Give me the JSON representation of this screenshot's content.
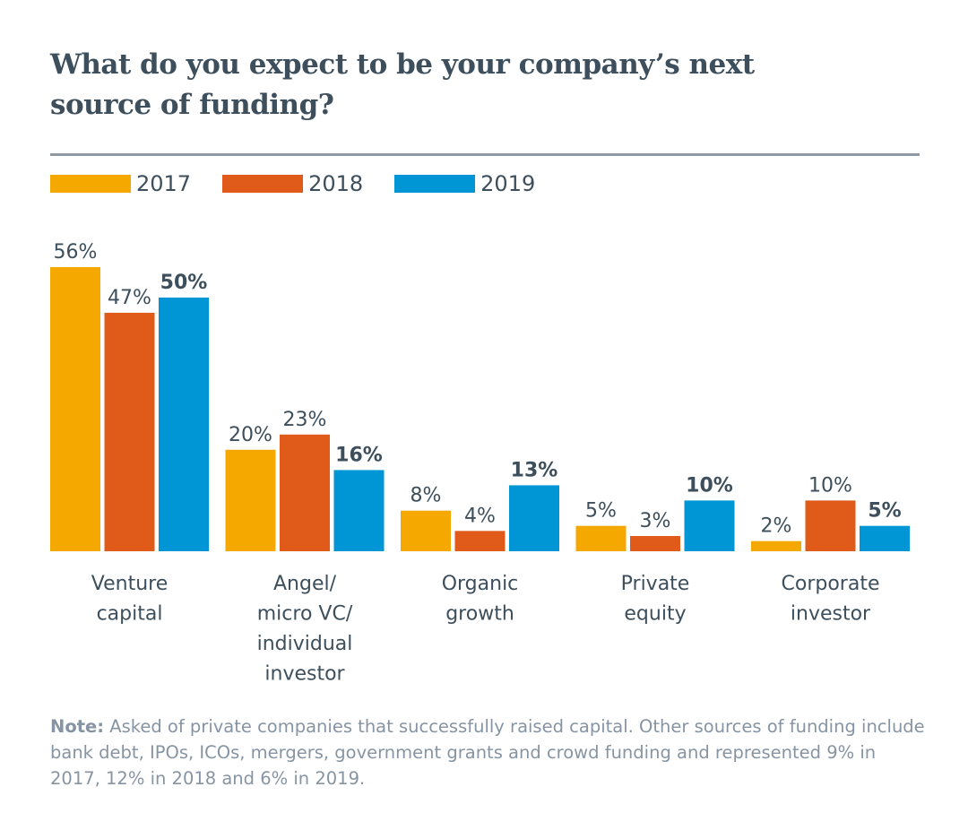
{
  "chart_data": {
    "type": "bar",
    "title": "What do you expect to be your company’s next source of funding?",
    "categories": [
      [
        "Venture",
        "capital"
      ],
      [
        "Angel/",
        "micro VC/",
        "individual",
        "investor"
      ],
      [
        "Organic",
        "growth"
      ],
      [
        "Private",
        "equity"
      ],
      [
        "Corporate",
        "investor"
      ]
    ],
    "series": [
      {
        "name": "2017",
        "color": "#f5a800",
        "values": [
          56,
          20,
          8,
          5,
          2
        ],
        "labels": [
          "56%",
          "20%",
          "8%",
          "5%",
          "2%"
        ]
      },
      {
        "name": "2018",
        "color": "#e05a1a",
        "values": [
          47,
          23,
          4,
          3,
          10
        ],
        "labels": [
          "47%",
          "23%",
          "4%",
          "3%",
          "10%"
        ]
      },
      {
        "name": "2019",
        "color": "#0096d6",
        "values": [
          50,
          16,
          13,
          10,
          5
        ],
        "labels": [
          "50%",
          "16%",
          "13%",
          "10%",
          "5%"
        ]
      }
    ],
    "ylim": [
      0,
      56
    ],
    "xlabel": "",
    "ylabel": "",
    "grid": false,
    "legend_position": "top-left"
  },
  "note": {
    "label": "Note:",
    "text": " Asked of private companies that successfully raised capital. Other sources of funding include bank debt, IPOs, ICOs, mergers, government grants and crowd funding and represented 9% in 2017, 12% in 2018 and 6% in 2019."
  }
}
